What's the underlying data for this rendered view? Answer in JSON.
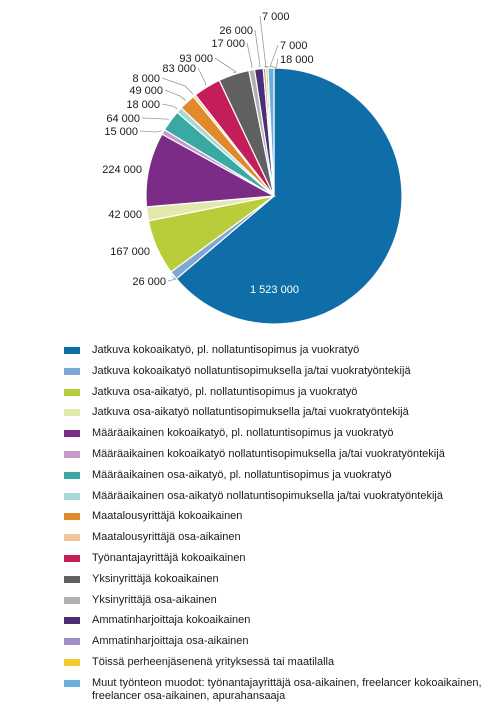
{
  "chart_data": {
    "type": "pie",
    "title": "",
    "legend_position": "bottom",
    "slices": [
      {
        "label": "Jatkuva kokoaikatyö, pl. nollatuntisopimus ja vuokratyö",
        "value": 1523000,
        "value_label": "1 523 000",
        "color": "#0f6ea8"
      },
      {
        "label": "Jatkuva kokoaikatyö nollatuntisopimuksella ja/tai vuokratyöntekijä",
        "value": 26000,
        "value_label": "26 000",
        "color": "#7fa8d4"
      },
      {
        "label": "Jatkuva osa-aikatyö, pl. nollatuntisopimus ja vuokratyö",
        "value": 167000,
        "value_label": "167 000",
        "color": "#b9cd3a"
      },
      {
        "label": "Jatkuva osa-aikatyö nollatuntisopimuksella ja/tai vuokratyöntekijä",
        "value": 42000,
        "value_label": "42 000",
        "color": "#e3e8ad"
      },
      {
        "label": "Määräaikainen kokoaikatyö, pl. nollatuntisopimus ja vuokratyö",
        "value": 224000,
        "value_label": "224 000",
        "color": "#7b2c86"
      },
      {
        "label": "Määräaikainen kokoaikatyö nollatuntisopimuksella ja/tai vuokratyöntekijä",
        "value": 15000,
        "value_label": "15 000",
        "color": "#c49ac9"
      },
      {
        "label": "Määräaikainen osa-aikatyö, pl. nollatuntisopimus ja vuokratyö",
        "value": 64000,
        "value_label": "64 000",
        "color": "#3aa9a4"
      },
      {
        "label": "Määräaikainen osa-aikatyö nollatuntisopimuksella ja/tai vuokratyöntekijä",
        "value": 18000,
        "value_label": "18 000",
        "color": "#a9d9d6"
      },
      {
        "label": "Maatalousyrittäjä kokoaikainen",
        "value": 49000,
        "value_label": "49 000",
        "color": "#e08a2c"
      },
      {
        "label": "Maatalousyrittäjä osa-aikainen",
        "value": 8000,
        "value_label": "8 000",
        "color": "#f0c79a"
      },
      {
        "label": "Työnantajayrittäjä kokoaikainen",
        "value": 83000,
        "value_label": "83 000",
        "color": "#c41e5a"
      },
      {
        "label": "Yksinyrittäjä kokoaikainen",
        "value": 93000,
        "value_label": "93 000",
        "color": "#606060"
      },
      {
        "label": "Yksinyrittäjä osa-aikainen",
        "value": 17000,
        "value_label": "17 000",
        "color": "#b0b0b0"
      },
      {
        "label": "Ammatinharjoittaja kokoaikainen",
        "value": 26000,
        "value_label": "26 000",
        "color": "#4a2f74"
      },
      {
        "label": "Ammatinharjoittaja osa-aikainen",
        "value": 7000,
        "value_label": "7 000",
        "color": "#9f8fc4"
      },
      {
        "label": "Töissä perheenjäsenenä yrityksessä tai maatilalla",
        "value": 7000,
        "value_label": "7 000",
        "color": "#f2cc2f"
      },
      {
        "label": "Muut työnteon muodot: työnantajayrittäjä osa-aikainen, freelancer kokoaikainen, freelancer osa-aikainen, apurahansaaja",
        "value": 18000,
        "value_label": "18 000",
        "color": "#6aaee0"
      }
    ]
  }
}
